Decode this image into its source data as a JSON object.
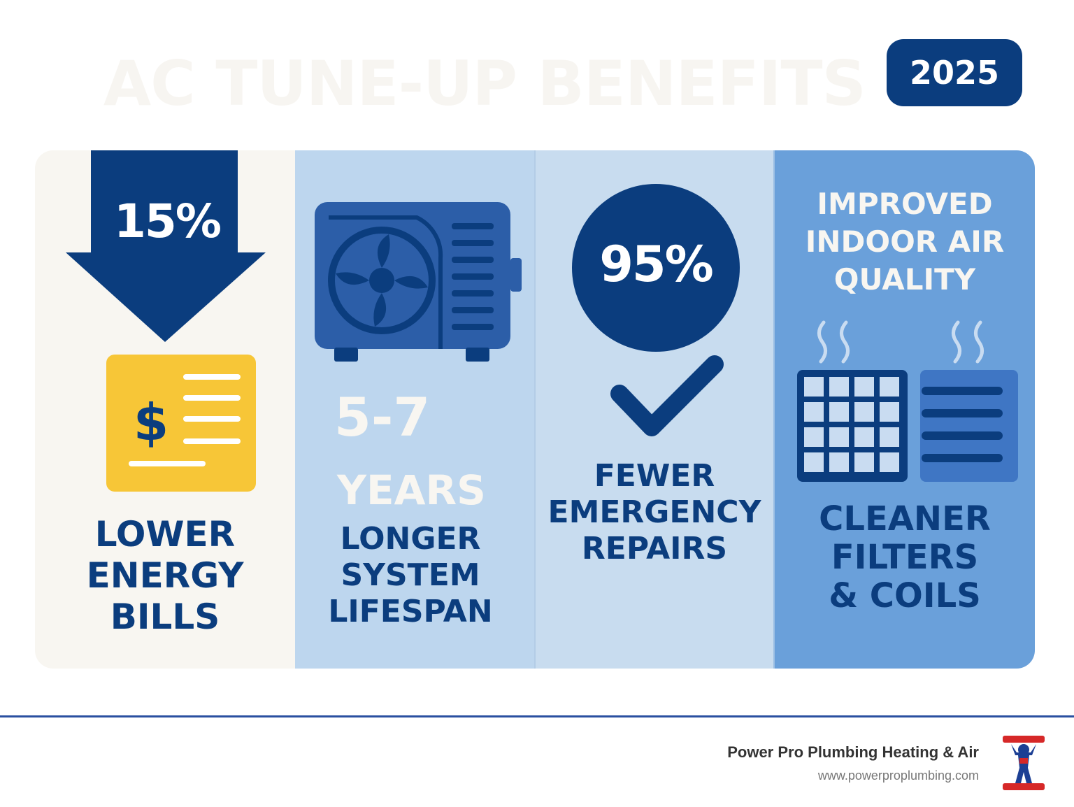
{
  "header": {
    "title": "AC TUNE-UP BENEFITS",
    "year": "2025"
  },
  "benefits": [
    {
      "stat": "15%",
      "caption": [
        "LOWER",
        "ENERGY",
        "BILLS"
      ],
      "icon": "down-arrow-icon",
      "icon2": "bill-dollar-icon",
      "dollar": "$"
    },
    {
      "stat_range": "5-7",
      "stat_unit": "YEARS",
      "caption": [
        "LONGER",
        "SYSTEM",
        "LIFESPAN"
      ],
      "icon": "ac-unit-icon"
    },
    {
      "stat": "95%",
      "caption": [
        "FEWER",
        "EMERGENCY",
        "REPAIRS"
      ],
      "icon": "checkmark-icon"
    },
    {
      "heading": [
        "IMPROVED",
        "INDOOR AIR",
        "QUALITY"
      ],
      "caption": [
        "CLEANER",
        "FILTERS",
        "& COILS"
      ],
      "icon": "air-filter-icon"
    }
  ],
  "footer": {
    "company": "Power Pro Plumbing Heating & Air",
    "website": "www.powerproplumbing.com",
    "logo_icon": "power-pro-mascot-logo"
  },
  "colors": {
    "navy": "#0b3d7e",
    "cream": "#f8f6f1",
    "light_blue": "#bdd6ee",
    "mid_blue": "#6aa0da",
    "yellow": "#f7c637"
  }
}
